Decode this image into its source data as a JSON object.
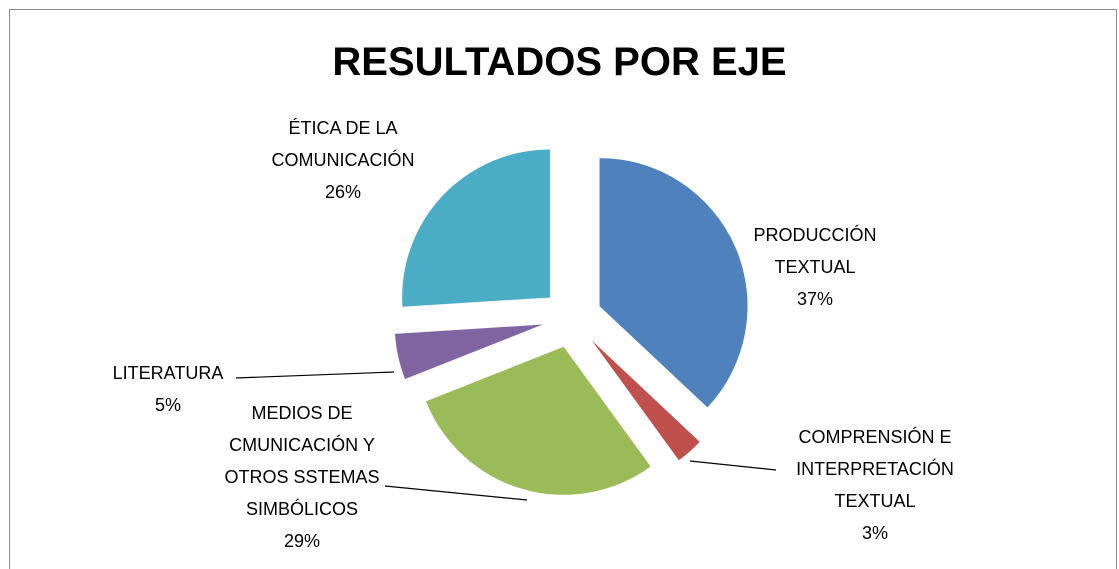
{
  "chart_data": {
    "type": "pie",
    "title": "RESULTADOS POR EJE",
    "categories": [
      "PRODUCCIÓN TEXTUAL",
      "COMPRENSIÓN E INTERPRETACIÓN TEXTUAL",
      "MEDIOS DE CMUNICACIÓN Y OTROS SSTEMAS SIMBÓLICOS",
      "LITERATURA",
      "ÉTICA DE LA COMUNICACIÓN"
    ],
    "values": [
      37,
      3,
      29,
      5,
      26
    ],
    "value_labels": [
      "37%",
      "3%",
      "29%",
      "5%",
      "26%"
    ],
    "colors": [
      "#4f81bd",
      "#c0504d",
      "#9bbb59",
      "#8064a2",
      "#4bacc6"
    ],
    "exploded": true
  }
}
